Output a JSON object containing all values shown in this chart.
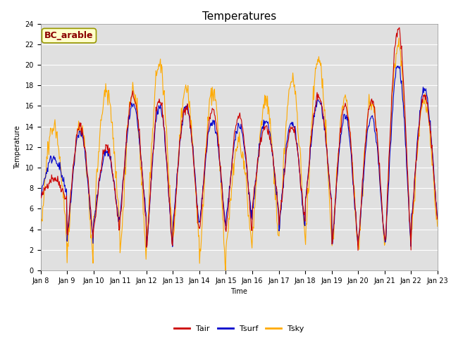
{
  "title": "Temperatures",
  "xlabel": "Time",
  "ylabel": "Temperature",
  "ylim": [
    0,
    24
  ],
  "site_label": "BC_arable",
  "tair_color": "#cc0000",
  "tsurf_color": "#0000cc",
  "tsky_color": "#ffaa00",
  "background_color": "#e0e0e0",
  "figure_background": "#ffffff",
  "x_tick_labels": [
    "Jan 8",
    "Jan 9",
    "Jan 10",
    "Jan 11",
    "Jan 12",
    "Jan 13",
    "Jan 14",
    "Jan 15",
    "Jan 16",
    "Jan 17",
    "Jan 18",
    "Jan 19",
    "Jan 20",
    "Jan 21",
    "Jan 22",
    "Jan 23"
  ],
  "n_days": 15,
  "pts_per_day": 48,
  "tair_daily_min": [
    7.0,
    3.5,
    4.0,
    5.0,
    2.2,
    4.0,
    4.0,
    4.0,
    6.5,
    4.5,
    7.0,
    2.5,
    3.0,
    2.5,
    5.0
  ],
  "tair_daily_max": [
    9.0,
    14.0,
    12.0,
    17.0,
    16.5,
    16.0,
    15.5,
    15.0,
    14.0,
    14.0,
    17.0,
    16.0,
    16.5,
    23.5,
    17.0
  ],
  "tsurf_daily_min": [
    7.5,
    3.0,
    4.5,
    5.5,
    2.2,
    4.5,
    4.5,
    5.0,
    6.0,
    4.0,
    7.0,
    2.5,
    3.0,
    2.5,
    5.0
  ],
  "tsurf_daily_max": [
    11.0,
    13.5,
    11.5,
    16.0,
    16.0,
    16.0,
    14.5,
    14.0,
    14.5,
    14.5,
    16.5,
    15.0,
    15.0,
    20.0,
    17.5
  ],
  "tsky_daily_min": [
    4.0,
    1.5,
    5.0,
    1.5,
    3.0,
    3.0,
    0.5,
    2.5,
    3.5,
    3.5,
    3.5,
    2.5,
    2.5,
    2.5,
    4.0
  ],
  "tsky_daily_max": [
    14.0,
    14.0,
    17.5,
    17.5,
    20.0,
    17.5,
    17.5,
    12.5,
    16.5,
    18.5,
    20.5,
    16.5,
    16.5,
    22.0,
    16.5
  ],
  "line_width": 0.8,
  "legend_fontsize": 8,
  "tick_fontsize": 7,
  "title_fontsize": 11
}
